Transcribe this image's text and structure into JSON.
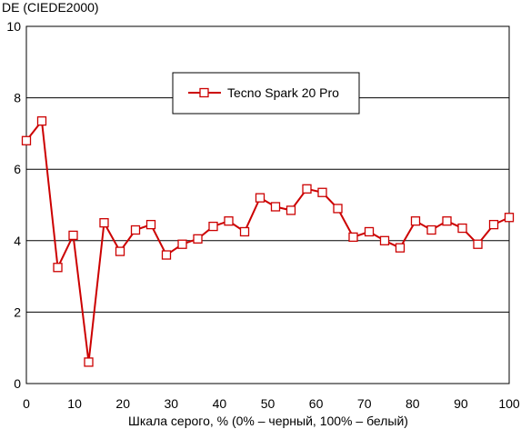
{
  "chart_data": {
    "type": "line",
    "ylabel": "DE (CIEDE2000)",
    "xlabel": "Шкала серого, % (0% – черный, 100% – белый)",
    "xlim": [
      0,
      100
    ],
    "ylim": [
      0,
      10
    ],
    "x_ticks": [
      "0",
      "10",
      "20",
      "30",
      "40",
      "50",
      "60",
      "70",
      "80",
      "90",
      "100"
    ],
    "y_ticks": [
      "0",
      "2",
      "4",
      "6",
      "8",
      "10"
    ],
    "grid": "horizontal",
    "legend_position": "top-center",
    "series": [
      {
        "name": "Tecno Spark 20 Pro",
        "color": "#cc0000",
        "marker": "square",
        "x": [
          0,
          3.2,
          6.5,
          9.7,
          12.9,
          16.1,
          19.4,
          22.6,
          25.8,
          29,
          32.3,
          35.5,
          38.7,
          41.9,
          45.2,
          48.4,
          51.6,
          54.8,
          58.1,
          61.3,
          64.5,
          67.7,
          71,
          74.2,
          77.4,
          80.6,
          83.9,
          87.1,
          90.3,
          93.5,
          96.8,
          100
        ],
        "y": [
          6.8,
          7.35,
          3.25,
          4.15,
          0.6,
          4.5,
          3.7,
          4.3,
          4.45,
          3.6,
          3.9,
          4.05,
          4.4,
          4.55,
          4.25,
          5.2,
          4.95,
          4.85,
          5.45,
          5.35,
          4.9,
          4.1,
          4.25,
          4.0,
          3.8,
          4.55,
          4.3,
          4.55,
          4.35,
          3.9,
          4.45,
          4.65
        ]
      }
    ]
  }
}
